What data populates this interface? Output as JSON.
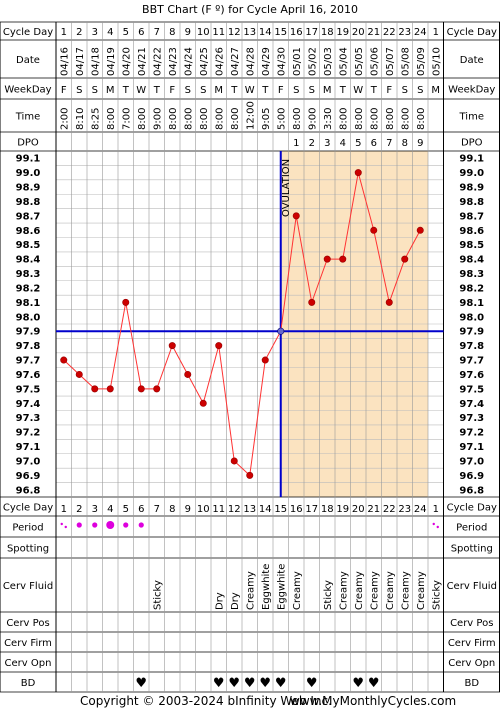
{
  "title": "BBT Chart (F º) for Cycle April 16, 2010",
  "copyright": "Copyright © 2003-2024 bInfinity Web Inc.",
  "site": "www.MyMonthlyCycles.com",
  "row_labels": {
    "cycle_day": "Cycle Day",
    "date": "Date",
    "weekday": "WeekDay",
    "time": "Time",
    "dpo": "DPO",
    "period": "Period",
    "spotting": "Spotting",
    "cerv_fluid": "Cerv Fluid",
    "cerv_pos": "Cerv Pos",
    "cerv_firm": "Cerv Firm",
    "cerv_opn": "Cerv Opn",
    "bd": "BD"
  },
  "ovulation_label": "OVULATION",
  "ovulation_day": 15,
  "colors": {
    "line": "#ff3333",
    "marker": "#cc0000",
    "coverline": "#0000cc",
    "luteal_fill": "#fbe3c0",
    "grid": "#bbbbbb",
    "period": "#dd00dd",
    "bd": "#ee3377"
  },
  "columns": [
    {
      "day": "1",
      "date": "04/16",
      "weekday": "F",
      "time": "2:00",
      "dpo": "",
      "period": "spot",
      "fluid": "",
      "bd": false
    },
    {
      "day": "2",
      "date": "04/17",
      "weekday": "S",
      "time": "8:10",
      "dpo": "",
      "period": "light",
      "fluid": "",
      "bd": false
    },
    {
      "day": "3",
      "date": "04/18",
      "weekday": "S",
      "time": "8:25",
      "dpo": "",
      "period": "light",
      "fluid": "",
      "bd": false
    },
    {
      "day": "4",
      "date": "04/19",
      "weekday": "M",
      "time": "8:00",
      "dpo": "",
      "period": "heavy",
      "fluid": "",
      "bd": false
    },
    {
      "day": "5",
      "date": "04/20",
      "weekday": "T",
      "time": "7:00",
      "dpo": "",
      "period": "light",
      "fluid": "",
      "bd": false
    },
    {
      "day": "6",
      "date": "04/21",
      "weekday": "W",
      "time": "8:00",
      "dpo": "",
      "period": "light",
      "fluid": "",
      "bd": true
    },
    {
      "day": "7",
      "date": "04/22",
      "weekday": "T",
      "time": "9:00",
      "dpo": "",
      "period": "",
      "fluid": "Sticky",
      "bd": false
    },
    {
      "day": "8",
      "date": "04/23",
      "weekday": "F",
      "time": "8:00",
      "dpo": "",
      "period": "",
      "fluid": "",
      "bd": false
    },
    {
      "day": "9",
      "date": "04/24",
      "weekday": "S",
      "time": "8:00",
      "dpo": "",
      "period": "",
      "fluid": "",
      "bd": false
    },
    {
      "day": "10",
      "date": "04/25",
      "weekday": "S",
      "time": "8:00",
      "dpo": "",
      "period": "",
      "fluid": "",
      "bd": false
    },
    {
      "day": "11",
      "date": "04/26",
      "weekday": "M",
      "time": "8:00",
      "dpo": "",
      "period": "",
      "fluid": "Dry",
      "bd": true
    },
    {
      "day": "12",
      "date": "04/27",
      "weekday": "T",
      "time": "8:00",
      "dpo": "",
      "period": "",
      "fluid": "Dry",
      "bd": true
    },
    {
      "day": "13",
      "date": "04/28",
      "weekday": "W",
      "time": "12:00",
      "dpo": "",
      "period": "",
      "fluid": "Creamy",
      "bd": true
    },
    {
      "day": "14",
      "date": "04/29",
      "weekday": "T",
      "time": "9:05",
      "dpo": "",
      "period": "",
      "fluid": "Eggwhite",
      "bd": true
    },
    {
      "day": "15",
      "date": "04/30",
      "weekday": "F",
      "time": "5:00",
      "dpo": "",
      "period": "",
      "fluid": "Eggwhite",
      "bd": true
    },
    {
      "day": "16",
      "date": "05/01",
      "weekday": "S",
      "time": "8:00",
      "dpo": "1",
      "period": "",
      "fluid": "Creamy",
      "bd": false
    },
    {
      "day": "17",
      "date": "05/02",
      "weekday": "S",
      "time": "9:00",
      "dpo": "2",
      "period": "",
      "fluid": "",
      "bd": true
    },
    {
      "day": "18",
      "date": "05/03",
      "weekday": "M",
      "time": "3:30",
      "dpo": "3",
      "period": "",
      "fluid": "Sticky",
      "bd": false
    },
    {
      "day": "19",
      "date": "05/04",
      "weekday": "T",
      "time": "8:00",
      "dpo": "4",
      "period": "",
      "fluid": "Creamy",
      "bd": false
    },
    {
      "day": "20",
      "date": "05/05",
      "weekday": "W",
      "time": "8:00",
      "dpo": "5",
      "period": "",
      "fluid": "Creamy",
      "bd": true
    },
    {
      "day": "21",
      "date": "05/06",
      "weekday": "T",
      "time": "8:00",
      "dpo": "6",
      "period": "",
      "fluid": "Creamy",
      "bd": true
    },
    {
      "day": "22",
      "date": "05/07",
      "weekday": "F",
      "time": "8:00",
      "dpo": "7",
      "period": "",
      "fluid": "Creamy",
      "bd": false
    },
    {
      "day": "23",
      "date": "05/08",
      "weekday": "S",
      "time": "8:00",
      "dpo": "8",
      "period": "",
      "fluid": "Creamy",
      "bd": false
    },
    {
      "day": "24",
      "date": "05/09",
      "weekday": "S",
      "time": "8:00",
      "dpo": "9",
      "period": "",
      "fluid": "Creamy",
      "bd": false
    },
    {
      "day": "1",
      "date": "05/10",
      "weekday": "M",
      "time": "",
      "dpo": "",
      "period": "spot",
      "fluid": "Sticky",
      "bd": false
    }
  ],
  "chart_data": {
    "type": "line",
    "title": "BBT Chart (F º) for Cycle April 16, 2010",
    "xlabel": "Cycle Day",
    "ylabel": "",
    "x": [
      1,
      2,
      3,
      4,
      5,
      6,
      7,
      8,
      9,
      10,
      11,
      12,
      13,
      14,
      15,
      16,
      17,
      18,
      19,
      20,
      21,
      22,
      23,
      24
    ],
    "series": [
      {
        "values": [
          97.7,
          97.6,
          97.5,
          97.5,
          98.1,
          97.5,
          97.5,
          97.8,
          97.6,
          97.4,
          97.8,
          97.0,
          96.9,
          97.7,
          97.9,
          98.7,
          98.1,
          98.4,
          98.4,
          99.0,
          98.6,
          98.1,
          98.4,
          98.6
        ]
      }
    ],
    "yticks": [
      "99.1",
      "99.0",
      "98.9",
      "98.8",
      "98.7",
      "98.6",
      "98.5",
      "98.4",
      "98.3",
      "98.2",
      "98.1",
      "98.0",
      "97.9",
      "97.8",
      "97.7",
      "97.6",
      "97.5",
      "97.4",
      "97.3",
      "97.2",
      "97.1",
      "97.0",
      "96.9",
      "96.8"
    ],
    "ylim": [
      96.8,
      99.1
    ],
    "coverline": 97.9,
    "ovulation_day": 15,
    "grid": true
  }
}
